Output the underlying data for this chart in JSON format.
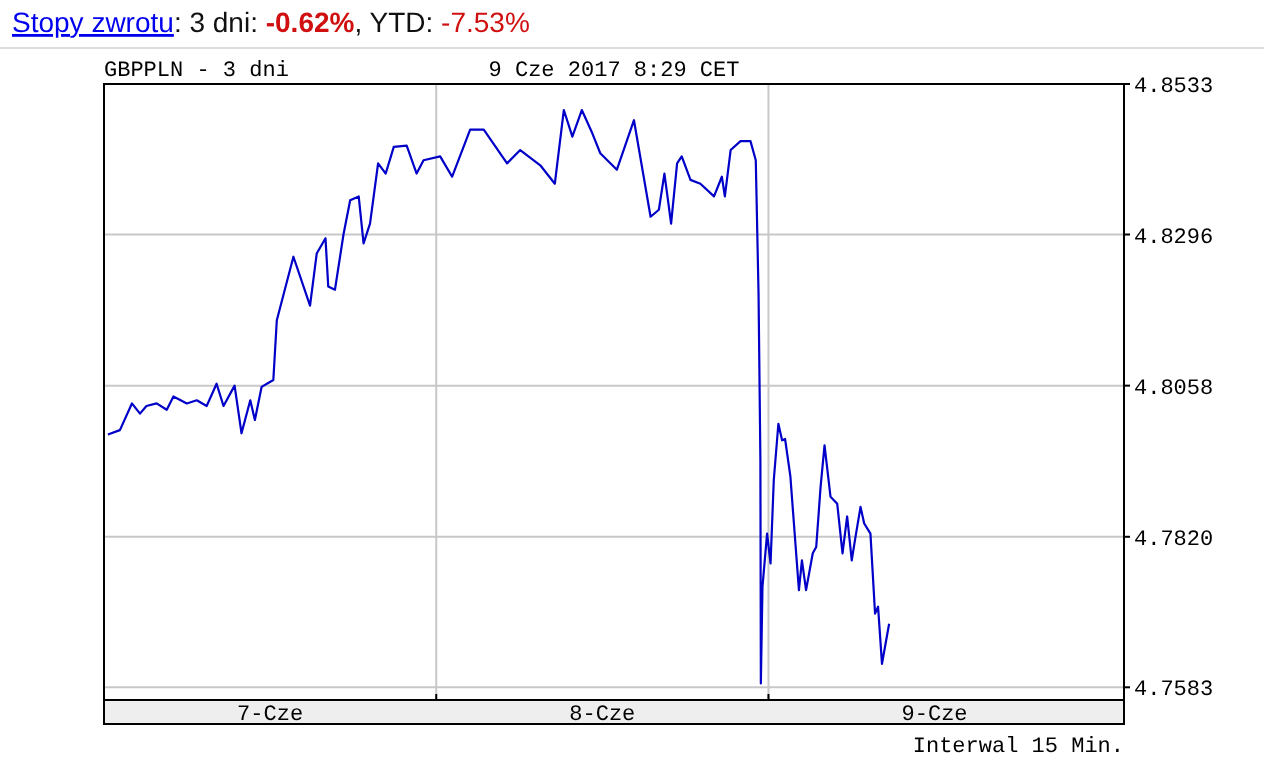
{
  "chart_data": {
    "type": "line",
    "title": "Stopy zwrotu: 3 dni: -0.62%, YTD: -7.53%",
    "subtitle": "GBPPLN - 3 dni",
    "annotations": [
      "9 Cze 2017 8:29 CET",
      "Interwal 15 Min."
    ],
    "x": [
      "2017-06-07T00:17",
      "2017-06-07T01:09",
      "2017-06-07T02:01",
      "2017-06-07T02:36",
      "2017-06-07T03:04",
      "2017-06-07T03:48",
      "2017-06-07T04:32",
      "2017-06-07T05:01",
      "2017-06-07T05:59",
      "2017-06-07T06:42",
      "2017-06-07T07:25",
      "2017-06-07T08:08",
      "2017-06-07T08:38",
      "2017-06-07T09:26",
      "2017-06-07T09:56",
      "2017-06-07T10:34",
      "2017-06-07T10:54",
      "2017-06-07T11:23",
      "2017-06-07T12:14",
      "2017-06-07T12:29",
      "2017-06-07T13:41",
      "2017-06-07T14:53",
      "2017-06-07T15:22",
      "2017-06-07T16:00",
      "2017-06-07T16:12",
      "2017-06-07T16:41",
      "2017-06-07T17:18",
      "2017-06-07T17:47",
      "2017-06-07T18:24",
      "2017-06-07T18:45",
      "2017-06-07T19:13",
      "2017-06-07T19:48",
      "2017-06-07T20:21",
      "2017-06-07T20:56",
      "2017-06-07T21:52",
      "2017-06-07T22:35",
      "2017-06-07T23:05",
      "2017-06-08T00:17",
      "2017-06-08T01:09",
      "2017-06-08T02:27",
      "2017-06-08T03:26",
      "2017-06-08T05:07",
      "2017-06-08T06:04",
      "2017-06-08T07:31",
      "2017-06-08T08:34",
      "2017-06-08T09:13",
      "2017-06-08T09:50",
      "2017-06-08T10:31",
      "2017-06-08T11:17",
      "2017-06-08T11:51",
      "2017-06-08T13:03",
      "2017-06-08T14:17",
      "2017-06-08T15:29",
      "2017-06-08T16:05",
      "2017-06-08T16:29",
      "2017-06-08T16:58",
      "2017-06-08T17:24",
      "2017-06-08T17:44",
      "2017-06-08T18:22",
      "2017-06-08T19:05",
      "2017-06-08T20:04",
      "2017-06-08T20:38",
      "2017-06-08T20:51",
      "2017-06-08T21:16",
      "2017-06-08T21:59",
      "2017-06-08T22:42",
      "2017-06-08T23:05",
      "2017-06-08T23:17",
      "2017-06-08T23:25",
      "2017-06-08T23:27",
      "2017-06-08T23:34",
      "2017-06-08T23:54",
      "2017-06-09T00:09",
      "2017-06-09T00:23",
      "2017-06-09T00:43",
      "2017-06-09T00:59",
      "2017-06-09T01:12",
      "2017-06-09T01:35",
      "2017-06-09T02:12",
      "2017-06-09T02:25",
      "2017-06-09T02:43",
      "2017-06-09T03:12",
      "2017-06-09T03:27",
      "2017-06-09T03:46",
      "2017-06-09T04:03",
      "2017-06-09T04:29",
      "2017-06-09T04:58",
      "2017-06-09T05:21",
      "2017-06-09T05:41",
      "2017-06-09T06:01",
      "2017-06-09T06:16",
      "2017-06-09T06:39",
      "2017-06-09T06:55",
      "2017-06-09T07:22",
      "2017-06-09T07:42",
      "2017-06-09T07:55",
      "2017-06-09T08:12",
      "2017-06-09T08:43"
    ],
    "series": [
      {
        "color": "#0000c8",
        "values": [
          4.7981,
          4.7988,
          4.803,
          4.8014,
          4.8026,
          4.803,
          4.802,
          4.8041,
          4.803,
          4.8035,
          4.8026,
          4.8061,
          4.8026,
          4.8058,
          4.7983,
          4.8035,
          4.8004,
          4.8056,
          4.8067,
          4.8161,
          4.8261,
          4.8184,
          4.8266,
          4.829,
          4.8214,
          4.8209,
          4.8296,
          4.835,
          4.8356,
          4.8282,
          4.8313,
          4.8408,
          4.8392,
          4.8434,
          4.8436,
          4.8392,
          4.8413,
          4.8419,
          4.8387,
          4.8461,
          4.8461,
          4.8408,
          4.8429,
          4.8405,
          4.8376,
          4.8492,
          4.845,
          4.8492,
          4.8455,
          4.8424,
          4.8398,
          4.8476,
          4.8324,
          4.8335,
          4.8392,
          4.8313,
          4.8408,
          4.8419,
          4.8382,
          4.8376,
          4.8356,
          4.8387,
          4.8356,
          4.8429,
          4.8443,
          4.8443,
          4.8413,
          4.8203,
          4.7941,
          4.7589,
          4.7741,
          4.7825,
          4.7778,
          4.7909,
          4.7998,
          4.7972,
          4.7974,
          4.7915,
          4.7736,
          4.7783,
          4.7736,
          4.7794,
          4.7804,
          4.7899,
          4.7964,
          4.7883,
          4.7872,
          4.7794,
          4.7852,
          4.7783,
          4.7817,
          4.7867,
          4.7841,
          4.7825,
          4.7699,
          4.771,
          4.762,
          4.7683
        ]
      }
    ],
    "xlim": [
      "2017-06-07T00:00",
      "2017-06-10T01:41"
    ],
    "xticks": [
      {
        "value": "2017-06-08T00:00",
        "label": null
      },
      {
        "value": "2017-06-09T00:00",
        "label": null
      },
      {
        "value": "2017-06-07T12:00",
        "label": "7-Cze"
      },
      {
        "value": "2017-06-08T12:00",
        "label": "8-Cze"
      },
      {
        "value": "2017-06-09T12:00",
        "label": "9-Cze"
      }
    ],
    "ylim": [
      4.7563,
      4.8533
    ],
    "yticks": [
      4.7583,
      {
        "value": 4.782,
        "label": "4.7820"
      },
      4.8058,
      4.8296,
      4.8533
    ],
    "grid": true,
    "line_style": "solid",
    "marker": "none"
  }
}
